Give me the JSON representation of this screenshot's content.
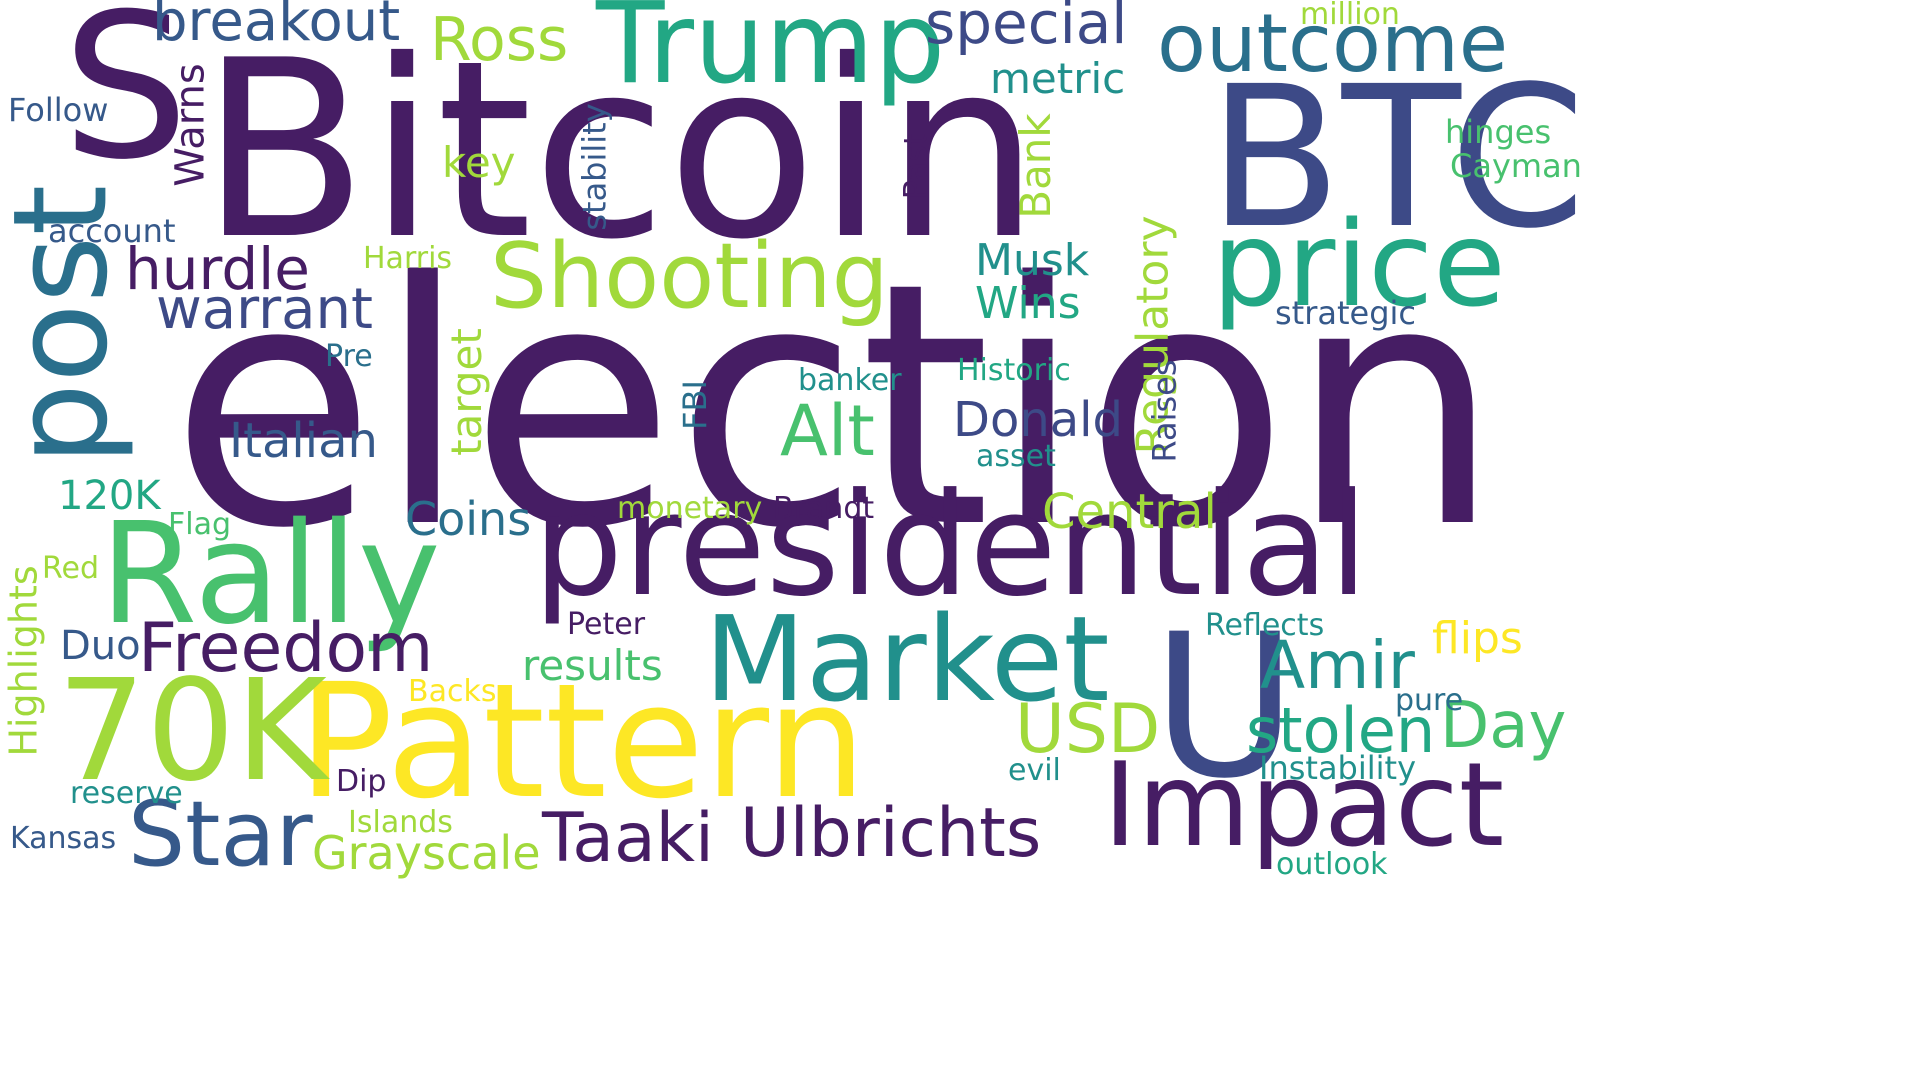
{
  "word_cloud": {
    "palette": {
      "dark_purple": "#461d64",
      "indigo": "#3d4a87",
      "slate_blue": "#36598a",
      "steel_teal": "#2a6f8c",
      "teal": "#21908c",
      "green_teal": "#22a784",
      "green": "#48c16e",
      "lime": "#a1d93b",
      "yellow": "#fde725"
    },
    "words": {
      "election": "election",
      "bitcoin": "Bitcoin",
      "s": "S",
      "btc": "BTC",
      "post": "post",
      "trump": "Trump",
      "price": "price",
      "presidential": "presidential",
      "pattern": "Pattern",
      "u": "U",
      "rally": "Rally",
      "market": "Market",
      "impact": "Impact",
      "seventy_k": "70K",
      "shooting": "Shooting",
      "star": "Star",
      "outcome": "outcome",
      "ulbrichts": "Ulbrichts",
      "taaki": "Taaki",
      "freedom": "Freedom",
      "amir": "Amir",
      "breakout": "breakout",
      "ross": "Ross",
      "special": "special",
      "alt": "Alt",
      "hurdle": "hurdle",
      "warrant": "warrant",
      "usd": "USD",
      "stolen": "stolen",
      "day": "Day",
      "regulatory": "Regulatory",
      "donald": "Donald",
      "italian": "Italian",
      "grayscale": "Grayscale",
      "central": "Central",
      "metric": "metric",
      "coins": "Coins",
      "results": "results",
      "flips": "flips",
      "musk": "Musk",
      "wins": "Wins",
      "target": "target",
      "bank": "Bank",
      "warns": "Warns",
      "key": "key",
      "highlights": "Highlights",
      "duo": "Duo",
      "one_twenty_k": "120K",
      "follow": "Follow",
      "account": "account",
      "harris": "Harris",
      "million": "million",
      "hinges": "hinges",
      "cayman": "Cayman",
      "stability": "stability",
      "past": "Past",
      "strategic": "strategic",
      "pre": "Pre",
      "banker": "banker",
      "historic": "Historic",
      "raises": "Raises",
      "fbi": "FBI",
      "asset": "asset",
      "brandt": "Brandt",
      "monetary": "monetary",
      "flag": "Flag",
      "red": "Red",
      "peter": "Peter",
      "reflects": "Reflects",
      "backs": "Backs",
      "pure": "pure",
      "instability": "Instability",
      "dip": "Dip",
      "evil": "evil",
      "reserve": "reserve",
      "islands": "Islands",
      "kansas": "Kansas",
      "outlook": "outlook"
    }
  }
}
